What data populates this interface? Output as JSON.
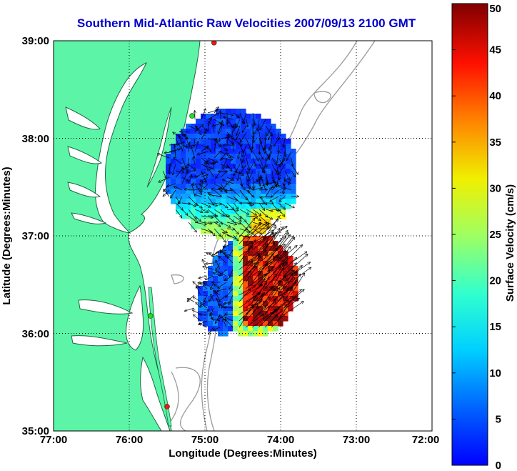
{
  "title": "Southern Mid-Atlantic Raw Velocities 2007/09/13 2100 GMT",
  "x_axis": {
    "label": "Longitude (Degrees:Minutes)",
    "ticks": [
      "77:00",
      "76:00",
      "75:00",
      "74:00",
      "73:00",
      "72:00"
    ]
  },
  "y_axis": {
    "label": "Latitude (Degrees:Minutes)",
    "ticks": [
      "39:00",
      "38:00",
      "37:00",
      "36:00",
      "35:00"
    ]
  },
  "colorbar": {
    "label": "Surface Velocity (cm/s)",
    "ticks": [
      "50",
      "45",
      "40",
      "35",
      "30",
      "25",
      "20",
      "15",
      "10",
      "5",
      "0"
    ],
    "min": 0,
    "max": 50,
    "colormap": "jet"
  },
  "colors": {
    "land": "#5cf5a8",
    "water": "#ffffff",
    "coast": "#1a6a42",
    "bathymetry": "#9a9a9a",
    "station_green": "#22dd22",
    "station_red": "#ff1010"
  },
  "chart_data": {
    "type": "vector-field map",
    "xlim": [
      -77,
      -72
    ],
    "ylim": [
      35,
      39
    ],
    "grid": true,
    "stations": [
      {
        "lon": -74.88,
        "lat": 38.98,
        "color": "red"
      },
      {
        "lon": -75.17,
        "lat": 38.23,
        "color": "green"
      },
      {
        "lon": -75.72,
        "lat": 36.18,
        "color": "green"
      },
      {
        "lon": -75.5,
        "lat": 35.25,
        "color": "red"
      }
    ],
    "velocity_regions": [
      {
        "region": "north",
        "lon_range": [
          -75.65,
          -73.88
        ],
        "lat_range": [
          36.72,
          38.38
        ],
        "speed_range_cm_s": [
          5,
          35
        ]
      },
      {
        "region": "south",
        "lon_range": [
          -75.38,
          -74.0
        ],
        "lat_range": [
          35.95,
          37.0
        ],
        "speed_range_cm_s": [
          5,
          50
        ]
      }
    ]
  }
}
